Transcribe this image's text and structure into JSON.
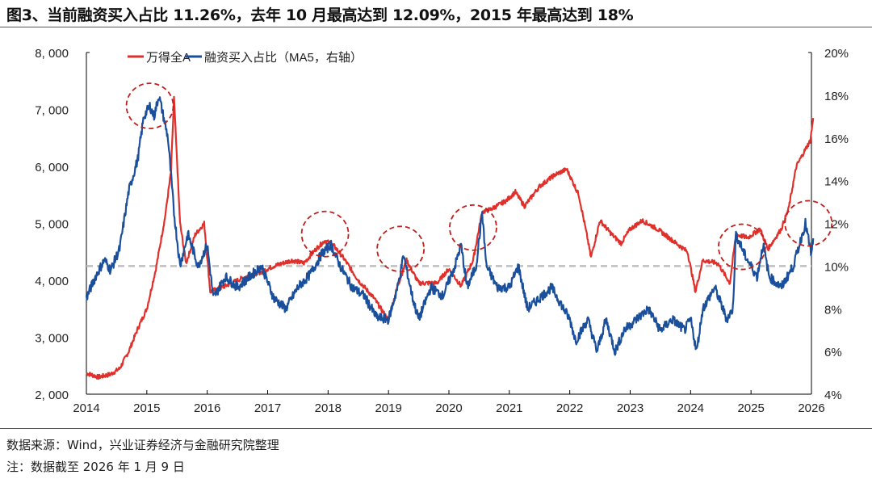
{
  "title": "图3、当前融资买入占比 11.26%，去年 10 月最高达到 12.09%，2015 年最高达到 18%",
  "source": "数据来源：Wind，兴业证券经济与金融研究院整理",
  "note": "注：数据截至 2026 年 1 月 9 日",
  "chart_data": {
    "type": "line",
    "title": "",
    "xlabel": "",
    "ylabel": "",
    "xlim": [
      2014,
      2026
    ],
    "x_ticks": [
      "2014",
      "2015",
      "2016",
      "2017",
      "2018",
      "2019",
      "2020",
      "2021",
      "2022",
      "2023",
      "2024",
      "2025",
      "2026"
    ],
    "ylim_left": [
      2000,
      8000
    ],
    "y_ticks_left": [
      "2, 000",
      "3, 000",
      "4, 000",
      "5, 000",
      "6, 000",
      "7, 000",
      "8, 000"
    ],
    "ylim_right": [
      4,
      20
    ],
    "y_ticks_right": [
      "4%",
      "6%",
      "8%",
      "10%",
      "12%",
      "14%",
      "16%",
      "18%",
      "20%"
    ],
    "legend_position": "top-center",
    "grid": false,
    "reference_line": {
      "axis": "right",
      "value": 10,
      "color": "#bfbfbf",
      "style": "dashed"
    },
    "highlights": [
      {
        "x": 2015.05,
        "y": 17.5
      },
      {
        "x": 2017.95,
        "y": 11.5
      },
      {
        "x": 2019.2,
        "y": 10.8
      },
      {
        "x": 2020.4,
        "y": 11.8
      },
      {
        "x": 2024.85,
        "y": 10.9
      },
      {
        "x": 2025.95,
        "y": 12.0
      }
    ],
    "series": [
      {
        "name": "万得全A",
        "axis": "left",
        "color": "#e0302c",
        "points": [
          [
            2014.0,
            2370
          ],
          [
            2014.2,
            2300
          ],
          [
            2014.4,
            2350
          ],
          [
            2014.55,
            2450
          ],
          [
            2014.7,
            2750
          ],
          [
            2014.85,
            3150
          ],
          [
            2015.0,
            3500
          ],
          [
            2015.15,
            4200
          ],
          [
            2015.3,
            5100
          ],
          [
            2015.4,
            5900
          ],
          [
            2015.45,
            7200
          ],
          [
            2015.55,
            5000
          ],
          [
            2015.65,
            4300
          ],
          [
            2015.8,
            4800
          ],
          [
            2015.95,
            5000
          ],
          [
            2016.05,
            3800
          ],
          [
            2016.3,
            3900
          ],
          [
            2016.6,
            4050
          ],
          [
            2016.9,
            4150
          ],
          [
            2017.1,
            4250
          ],
          [
            2017.4,
            4350
          ],
          [
            2017.6,
            4300
          ],
          [
            2017.8,
            4550
          ],
          [
            2017.95,
            4700
          ],
          [
            2018.1,
            4600
          ],
          [
            2018.25,
            4400
          ],
          [
            2018.5,
            4000
          ],
          [
            2018.75,
            3700
          ],
          [
            2019.0,
            3300
          ],
          [
            2019.15,
            3900
          ],
          [
            2019.3,
            4350
          ],
          [
            2019.5,
            3950
          ],
          [
            2019.8,
            3950
          ],
          [
            2020.0,
            4200
          ],
          [
            2020.2,
            3900
          ],
          [
            2020.4,
            4350
          ],
          [
            2020.55,
            5200
          ],
          [
            2020.7,
            5250
          ],
          [
            2020.95,
            5400
          ],
          [
            2021.1,
            5550
          ],
          [
            2021.25,
            5300
          ],
          [
            2021.5,
            5650
          ],
          [
            2021.75,
            5850
          ],
          [
            2021.95,
            5950
          ],
          [
            2022.15,
            5500
          ],
          [
            2022.3,
            4700
          ],
          [
            2022.35,
            4400
          ],
          [
            2022.5,
            5050
          ],
          [
            2022.7,
            4800
          ],
          [
            2022.85,
            4650
          ],
          [
            2023.0,
            4900
          ],
          [
            2023.2,
            5050
          ],
          [
            2023.45,
            4900
          ],
          [
            2023.7,
            4700
          ],
          [
            2023.95,
            4500
          ],
          [
            2024.08,
            3800
          ],
          [
            2024.2,
            4350
          ],
          [
            2024.45,
            4300
          ],
          [
            2024.65,
            3950
          ],
          [
            2024.75,
            4800
          ],
          [
            2024.95,
            4750
          ],
          [
            2025.15,
            4900
          ],
          [
            2025.28,
            4550
          ],
          [
            2025.5,
            4900
          ],
          [
            2025.62,
            5250
          ],
          [
            2025.75,
            6000
          ],
          [
            2025.9,
            6300
          ],
          [
            2025.98,
            6450
          ],
          [
            2026.03,
            6850
          ]
        ]
      },
      {
        "name": "融资买入占比（MA5，右轴）",
        "axis": "right",
        "color": "#1a4f9c",
        "points": [
          [
            2014.0,
            8.5
          ],
          [
            2014.15,
            9.5
          ],
          [
            2014.3,
            10.3
          ],
          [
            2014.4,
            9.8
          ],
          [
            2014.55,
            10.8
          ],
          [
            2014.7,
            13.5
          ],
          [
            2014.85,
            15.0
          ],
          [
            2014.95,
            17.0
          ],
          [
            2015.05,
            17.5
          ],
          [
            2015.12,
            17.0
          ],
          [
            2015.2,
            18.0
          ],
          [
            2015.35,
            16.0
          ],
          [
            2015.45,
            12.5
          ],
          [
            2015.55,
            10.0
          ],
          [
            2015.68,
            11.5
          ],
          [
            2015.85,
            10.0
          ],
          [
            2016.0,
            11.0
          ],
          [
            2016.1,
            8.5
          ],
          [
            2016.3,
            9.5
          ],
          [
            2016.5,
            9.0
          ],
          [
            2016.7,
            9.5
          ],
          [
            2016.9,
            10.0
          ],
          [
            2017.1,
            8.5
          ],
          [
            2017.3,
            8.0
          ],
          [
            2017.5,
            9.0
          ],
          [
            2017.7,
            9.6
          ],
          [
            2017.9,
            10.6
          ],
          [
            2018.05,
            11.0
          ],
          [
            2018.2,
            10.0
          ],
          [
            2018.4,
            9.0
          ],
          [
            2018.6,
            8.6
          ],
          [
            2018.8,
            7.6
          ],
          [
            2019.0,
            7.5
          ],
          [
            2019.15,
            9.0
          ],
          [
            2019.25,
            10.5
          ],
          [
            2019.4,
            8.5
          ],
          [
            2019.5,
            7.5
          ],
          [
            2019.7,
            9.0
          ],
          [
            2019.9,
            8.6
          ],
          [
            2020.1,
            10.0
          ],
          [
            2020.2,
            11.0
          ],
          [
            2020.3,
            9.0
          ],
          [
            2020.45,
            10.0
          ],
          [
            2020.55,
            12.5
          ],
          [
            2020.62,
            10.0
          ],
          [
            2020.8,
            9.0
          ],
          [
            2021.0,
            9.0
          ],
          [
            2021.15,
            10.0
          ],
          [
            2021.3,
            8.0
          ],
          [
            2021.5,
            8.5
          ],
          [
            2021.7,
            9.0
          ],
          [
            2021.9,
            8.0
          ],
          [
            2022.0,
            7.5
          ],
          [
            2022.1,
            6.5
          ],
          [
            2022.3,
            7.5
          ],
          [
            2022.45,
            6.0
          ],
          [
            2022.6,
            7.5
          ],
          [
            2022.75,
            6.0
          ],
          [
            2022.9,
            7.0
          ],
          [
            2023.1,
            7.5
          ],
          [
            2023.3,
            8.0
          ],
          [
            2023.5,
            7.0
          ],
          [
            2023.7,
            7.5
          ],
          [
            2023.9,
            7.0
          ],
          [
            2024.0,
            7.5
          ],
          [
            2024.1,
            6.0
          ],
          [
            2024.2,
            8.0
          ],
          [
            2024.4,
            9.0
          ],
          [
            2024.6,
            7.5
          ],
          [
            2024.7,
            8.0
          ],
          [
            2024.75,
            11.5
          ],
          [
            2024.9,
            10.5
          ],
          [
            2025.0,
            10.0
          ],
          [
            2025.1,
            9.5
          ],
          [
            2025.2,
            11.0
          ],
          [
            2025.3,
            9.5
          ],
          [
            2025.5,
            9.0
          ],
          [
            2025.7,
            10.0
          ],
          [
            2025.8,
            11.0
          ],
          [
            2025.9,
            12.0
          ],
          [
            2026.0,
            10.5
          ],
          [
            2026.03,
            11.3
          ]
        ]
      }
    ]
  }
}
